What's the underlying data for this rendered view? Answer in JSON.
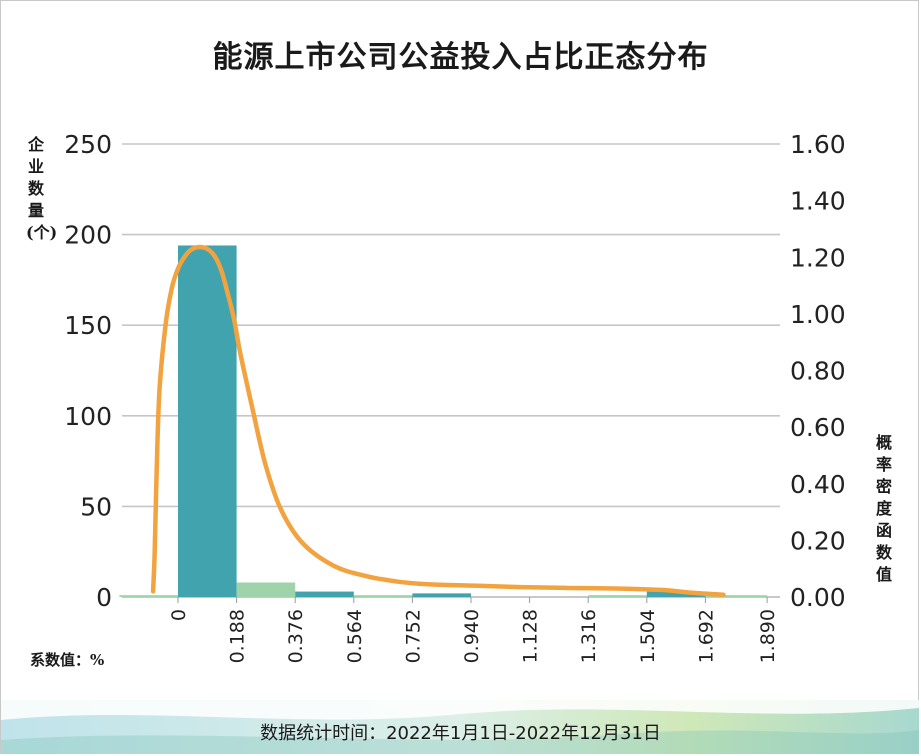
{
  "title": "能源上市公司公益投入占比正态分布",
  "footer": "数据统计时间：2022年1月1日-2022年12月31日",
  "chart_data": {
    "type": "bar",
    "title": "能源上市公司公益投入占比正态分布",
    "ylabel": "企业数量(个)",
    "y2label": "概率密度函数值",
    "xlabel": "系数值：%",
    "x_ticks": [
      "0",
      "0.188",
      "0.376",
      "0.564",
      "0.752",
      "0.940",
      "1.128",
      "1.316",
      "1.504",
      "1.692",
      "1.890"
    ],
    "y_ticks": [
      "0",
      "50",
      "100",
      "150",
      "200",
      "250"
    ],
    "y2_ticks": [
      "0.00",
      "0.20",
      "0.40",
      "0.60",
      "0.80",
      "1.00",
      "1.20",
      "1.40",
      "1.60"
    ],
    "ylim": [
      0,
      250
    ],
    "y2lim": [
      0,
      1.6
    ],
    "grid": true,
    "series": [
      {
        "type": "bar",
        "bins": [
          {
            "start": -0.188,
            "end": 0,
            "value": 1,
            "color": "#9fd3a9"
          },
          {
            "start": 0,
            "end": 0.188,
            "value": 194,
            "color": "#41a3ad"
          },
          {
            "start": 0.188,
            "end": 0.376,
            "value": 8,
            "color": "#9fd3a9"
          },
          {
            "start": 0.376,
            "end": 0.564,
            "value": 3,
            "color": "#41a3ad"
          },
          {
            "start": 0.564,
            "end": 0.752,
            "value": 1,
            "color": "#9fd3a9"
          },
          {
            "start": 0.752,
            "end": 0.94,
            "value": 2,
            "color": "#41a3ad"
          },
          {
            "start": 0.94,
            "end": 1.128,
            "value": 0,
            "color": "#9fd3a9"
          },
          {
            "start": 1.128,
            "end": 1.316,
            "value": 0,
            "color": "#41a3ad"
          },
          {
            "start": 1.316,
            "end": 1.504,
            "value": 1,
            "color": "#9fd3a9"
          },
          {
            "start": 1.504,
            "end": 1.692,
            "value": 3,
            "color": "#41a3ad"
          },
          {
            "start": 1.692,
            "end": 1.89,
            "value": 1,
            "color": "#9fd3a9"
          }
        ]
      },
      {
        "type": "line",
        "axis": "right",
        "color": "#f2a340",
        "x": [
          -0.08,
          -0.075,
          -0.07,
          -0.06,
          -0.04,
          -0.02,
          0.0,
          0.02,
          0.04,
          0.06,
          0.08,
          0.1,
          0.12,
          0.14,
          0.16,
          0.18,
          0.2,
          0.24,
          0.28,
          0.33,
          0.4,
          0.5,
          0.6,
          0.7,
          0.8,
          0.95,
          1.1,
          1.25,
          1.4,
          1.55,
          1.65,
          1.75
        ],
        "y": [
          0.02,
          0.15,
          0.38,
          0.72,
          0.96,
          1.09,
          1.16,
          1.2,
          1.225,
          1.235,
          1.235,
          1.225,
          1.2,
          1.15,
          1.07,
          0.98,
          0.86,
          0.66,
          0.47,
          0.31,
          0.19,
          0.11,
          0.075,
          0.055,
          0.045,
          0.04,
          0.035,
          0.032,
          0.03,
          0.025,
          0.015,
          0.008
        ]
      }
    ]
  }
}
